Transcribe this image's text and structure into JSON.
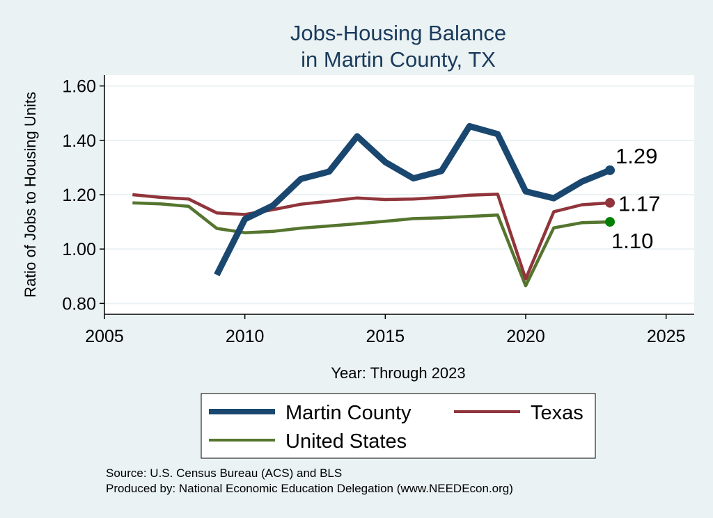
{
  "chart_data": {
    "type": "line",
    "title": [
      "Jobs-Housing Balance",
      "in Martin County, TX"
    ],
    "xlabel": "Year: Through 2023",
    "ylabel": "Ratio of Jobs to Housing Units",
    "xlim": [
      2005,
      2026
    ],
    "ylim": [
      0.76,
      1.64
    ],
    "x_ticks": [
      2005,
      2010,
      2015,
      2020,
      2025
    ],
    "y_ticks": [
      0.8,
      1.0,
      1.2,
      1.4,
      1.6
    ],
    "y_tick_labels": [
      "0.80",
      "1.00",
      "1.20",
      "1.40",
      "1.60"
    ],
    "grid": true,
    "legend_position": "bottom",
    "series": [
      {
        "name": "Martin County",
        "color": "#1a476f",
        "x": [
          2009,
          2010,
          2011,
          2012,
          2013,
          2014,
          2015,
          2016,
          2017,
          2018,
          2019,
          2020,
          2021,
          2022,
          2023
        ],
        "y": [
          0.905,
          1.11,
          1.16,
          1.258,
          1.285,
          1.415,
          1.32,
          1.26,
          1.287,
          1.452,
          1.423,
          1.212,
          1.187,
          1.248,
          1.29
        ],
        "end_label": "1.29"
      },
      {
        "name": "Texas",
        "color": "#90353b",
        "x": [
          2006,
          2007,
          2008,
          2009,
          2010,
          2011,
          2012,
          2013,
          2014,
          2015,
          2016,
          2017,
          2018,
          2019,
          2020,
          2021,
          2022,
          2023
        ],
        "y": [
          1.2,
          1.19,
          1.184,
          1.133,
          1.127,
          1.145,
          1.165,
          1.176,
          1.188,
          1.182,
          1.184,
          1.19,
          1.198,
          1.202,
          0.89,
          1.137,
          1.163,
          1.17
        ],
        "end_label": "1.17"
      },
      {
        "name": "United States",
        "color": "#55752f",
        "x": [
          2006,
          2007,
          2008,
          2009,
          2010,
          2011,
          2012,
          2013,
          2014,
          2015,
          2016,
          2017,
          2018,
          2019,
          2020,
          2021,
          2022,
          2023
        ],
        "y": [
          1.17,
          1.166,
          1.157,
          1.076,
          1.06,
          1.065,
          1.077,
          1.085,
          1.093,
          1.102,
          1.112,
          1.115,
          1.12,
          1.125,
          0.865,
          1.078,
          1.097,
          1.1
        ],
        "end_label": "1.10"
      }
    ],
    "source_lines": [
      "Source: U.S. Census Bureau (ACS) and BLS",
      "Produced by: National Economic Education Delegation (www.NEEDEcon.org)"
    ]
  }
}
